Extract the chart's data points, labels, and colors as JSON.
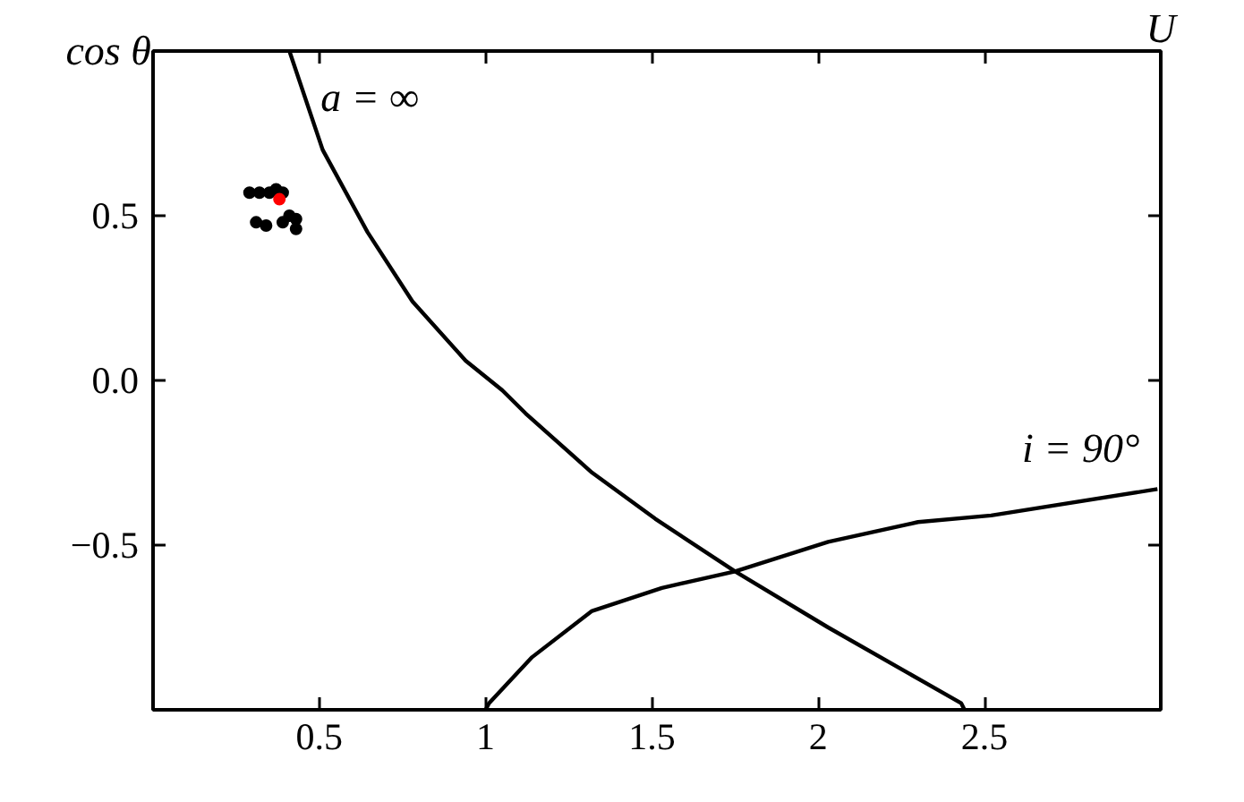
{
  "chart_data": {
    "type": "line",
    "xlabel": "U",
    "ylabel": "cos θ",
    "xlim": [
      0,
      3.03
    ],
    "ylim": [
      -1,
      1
    ],
    "xticks": [
      0.5,
      1.0,
      1.5,
      2.0,
      2.5
    ],
    "yticks": [
      {
        "value": -0.5,
        "label": "−0.5"
      },
      {
        "value": 0.0,
        "label": "0.0"
      },
      {
        "value": 0.5,
        "label": "0.5"
      }
    ],
    "grid": false,
    "series": [
      {
        "color": "#000000",
        "x": [
          0.41,
          0.51,
          0.645,
          0.78,
          0.94,
          1.05,
          1.12,
          1.32,
          1.51,
          1.75,
          2.03,
          2.43,
          2.44
        ],
        "values": [
          1.0,
          0.7,
          0.45,
          0.24,
          0.06,
          -0.03,
          -0.1,
          -0.28,
          -0.42,
          -0.58,
          -0.75,
          -0.98,
          -1.0
        ]
      },
      {
        "color": "#000000",
        "x": [
          1.0,
          1.01,
          1.14,
          1.32,
          1.53,
          1.75,
          2.03,
          2.3,
          2.52,
          3.02
        ],
        "values": [
          -1.0,
          -0.98,
          -0.84,
          -0.7,
          -0.63,
          -0.58,
          -0.49,
          -0.43,
          -0.41,
          -0.33
        ]
      },
      {
        "type": "scatter",
        "color": "#000000",
        "marker": "circle",
        "x": [
          0.29,
          0.32,
          0.35,
          0.37,
          0.39,
          0.31,
          0.34,
          0.39,
          0.41,
          0.43,
          0.43
        ],
        "values": [
          0.57,
          0.57,
          0.57,
          0.58,
          0.57,
          0.48,
          0.47,
          0.48,
          0.5,
          0.49,
          0.46
        ]
      },
      {
        "type": "scatter",
        "color": "#ff0000",
        "marker": "circle",
        "x": [
          0.38
        ],
        "values": [
          0.55
        ]
      }
    ],
    "annotations": [
      {
        "text": "a = ∞",
        "x": 0.45,
        "y": 0.86
      },
      {
        "text": "i = 90°",
        "x": 3.02,
        "y": -0.33
      }
    ]
  }
}
